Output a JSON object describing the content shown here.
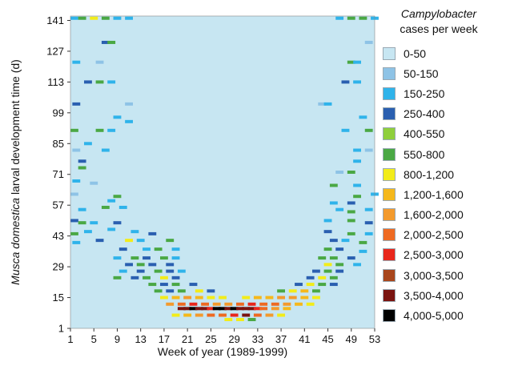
{
  "chart_data": {
    "type": "heatmap",
    "xlabel": "Week of year (1989-1999)",
    "ylabel": {
      "italic": "Musca domestica",
      "rest": " larval development time (d)"
    },
    "x_ticks": [
      1,
      5,
      9,
      13,
      17,
      21,
      25,
      29,
      33,
      37,
      41,
      45,
      49,
      53
    ],
    "y_ticks": [
      1,
      15,
      29,
      43,
      57,
      71,
      85,
      99,
      113,
      127,
      141
    ],
    "xlim": [
      1,
      53
    ],
    "ylim": [
      1,
      143
    ],
    "background_color": "#c7e6f2",
    "legend": {
      "title_italic": "Campylobacter",
      "title_rest": "cases per week",
      "position": "right",
      "bins": [
        {
          "label": "0-50",
          "color": "#c7e6f2",
          "value": 25
        },
        {
          "label": "50-150",
          "color": "#8ec3e6",
          "value": 100
        },
        {
          "label": "150-250",
          "color": "#2fb3ea",
          "value": 200
        },
        {
          "label": "250-400",
          "color": "#2a5fb0",
          "value": 325
        },
        {
          "label": "400-550",
          "color": "#8fcf3c",
          "value": 475
        },
        {
          "label": "550-800",
          "color": "#4aa844",
          "value": 675
        },
        {
          "label": "800-1,200",
          "color": "#f2ec1a",
          "value": 1000
        },
        {
          "label": "1,200-1,600",
          "color": "#f5b81c",
          "value": 1400
        },
        {
          "label": "1,600-2,000",
          "color": "#f39a2d",
          "value": 1800
        },
        {
          "label": "2,000-2,500",
          "color": "#ee6a22",
          "value": 2250
        },
        {
          "label": "2,500-3,000",
          "color": "#e8271c",
          "value": 2750
        },
        {
          "label": "3,000-3,500",
          "color": "#a8461c",
          "value": 3250
        },
        {
          "label": "3,500-4,000",
          "color": "#7a1410",
          "value": 3750
        },
        {
          "label": "4,000-5,000",
          "color": "#000000",
          "value": 4500
        }
      ]
    },
    "cells": [
      {
        "week": 1,
        "day": 142,
        "value": 200
      },
      {
        "week": 3,
        "day": 142,
        "value": 675
      },
      {
        "week": 5,
        "day": 142,
        "value": 1000
      },
      {
        "week": 7,
        "day": 142,
        "value": 675
      },
      {
        "week": 9,
        "day": 142,
        "value": 200
      },
      {
        "week": 11,
        "day": 142,
        "value": 200
      },
      {
        "week": 47,
        "day": 142,
        "value": 200
      },
      {
        "week": 49,
        "day": 142,
        "value": 675
      },
      {
        "week": 51,
        "day": 142,
        "value": 675
      },
      {
        "week": 53,
        "day": 142,
        "value": 200
      },
      {
        "week": 7,
        "day": 131,
        "value": 325
      },
      {
        "week": 8,
        "day": 131,
        "value": 675
      },
      {
        "week": 52,
        "day": 131,
        "value": 100
      },
      {
        "week": 2,
        "day": 122,
        "value": 200
      },
      {
        "week": 6,
        "day": 122,
        "value": 100
      },
      {
        "week": 49,
        "day": 122,
        "value": 675
      },
      {
        "week": 50,
        "day": 122,
        "value": 200
      },
      {
        "week": 4,
        "day": 113,
        "value": 325
      },
      {
        "week": 6,
        "day": 113,
        "value": 675
      },
      {
        "week": 8,
        "day": 113,
        "value": 200
      },
      {
        "week": 48,
        "day": 113,
        "value": 325
      },
      {
        "week": 50,
        "day": 113,
        "value": 200
      },
      {
        "week": 2,
        "day": 103,
        "value": 325
      },
      {
        "week": 11,
        "day": 103,
        "value": 100
      },
      {
        "week": 44,
        "day": 103,
        "value": 100
      },
      {
        "week": 45,
        "day": 103,
        "value": 200
      },
      {
        "week": 9,
        "day": 97,
        "value": 200
      },
      {
        "week": 11,
        "day": 95,
        "value": 200
      },
      {
        "week": 51,
        "day": 97,
        "value": 200
      },
      {
        "week": 1,
        "day": 91,
        "value": 675
      },
      {
        "week": 6,
        "day": 91,
        "value": 675
      },
      {
        "week": 8,
        "day": 91,
        "value": 200
      },
      {
        "week": 48,
        "day": 91,
        "value": 200
      },
      {
        "week": 52,
        "day": 91,
        "value": 675
      },
      {
        "week": 4,
        "day": 85,
        "value": 200
      },
      {
        "week": 2,
        "day": 82,
        "value": 100
      },
      {
        "week": 7,
        "day": 82,
        "value": 200
      },
      {
        "week": 50,
        "day": 82,
        "value": 200
      },
      {
        "week": 52,
        "day": 82,
        "value": 100
      },
      {
        "week": 3,
        "day": 77,
        "value": 325
      },
      {
        "week": 50,
        "day": 77,
        "value": 200
      },
      {
        "week": 3,
        "day": 74,
        "value": 675
      },
      {
        "week": 47,
        "day": 72,
        "value": 100
      },
      {
        "week": 49,
        "day": 72,
        "value": 675
      },
      {
        "week": 2,
        "day": 68,
        "value": 200
      },
      {
        "week": 5,
        "day": 67,
        "value": 100
      },
      {
        "week": 46,
        "day": 66,
        "value": 675
      },
      {
        "week": 50,
        "day": 66,
        "value": 200
      },
      {
        "week": 1,
        "day": 62,
        "value": 100
      },
      {
        "week": 9,
        "day": 61,
        "value": 675
      },
      {
        "week": 50,
        "day": 61,
        "value": 675
      },
      {
        "week": 53,
        "day": 62,
        "value": 200
      },
      {
        "week": 8,
        "day": 59,
        "value": 200
      },
      {
        "week": 46,
        "day": 58,
        "value": 200
      },
      {
        "week": 49,
        "day": 58,
        "value": 325
      },
      {
        "week": 3,
        "day": 55,
        "value": 200
      },
      {
        "week": 7,
        "day": 56,
        "value": 675
      },
      {
        "week": 10,
        "day": 56,
        "value": 200
      },
      {
        "week": 47,
        "day": 55,
        "value": 200
      },
      {
        "week": 49,
        "day": 54,
        "value": 675
      },
      {
        "week": 52,
        "day": 55,
        "value": 200
      },
      {
        "week": 1,
        "day": 50,
        "value": 325
      },
      {
        "week": 3,
        "day": 49,
        "value": 675
      },
      {
        "week": 5,
        "day": 49,
        "value": 200
      },
      {
        "week": 9,
        "day": 49,
        "value": 325
      },
      {
        "week": 45,
        "day": 50,
        "value": 200
      },
      {
        "week": 49,
        "day": 50,
        "value": 675
      },
      {
        "week": 52,
        "day": 49,
        "value": 325
      },
      {
        "week": 1,
        "day": 44,
        "value": 675
      },
      {
        "week": 4,
        "day": 45,
        "value": 200
      },
      {
        "week": 8,
        "day": 46,
        "value": 200
      },
      {
        "week": 12,
        "day": 45,
        "value": 200
      },
      {
        "week": 15,
        "day": 44,
        "value": 325
      },
      {
        "week": 45,
        "day": 45,
        "value": 325
      },
      {
        "week": 49,
        "day": 44,
        "value": 675
      },
      {
        "week": 52,
        "day": 44,
        "value": 200
      },
      {
        "week": 2,
        "day": 40,
        "value": 200
      },
      {
        "week": 6,
        "day": 41,
        "value": 325
      },
      {
        "week": 11,
        "day": 41,
        "value": 1000
      },
      {
        "week": 13,
        "day": 41,
        "value": 200
      },
      {
        "week": 18,
        "day": 41,
        "value": 675
      },
      {
        "week": 46,
        "day": 41,
        "value": 325
      },
      {
        "week": 48,
        "day": 41,
        "value": 200
      },
      {
        "week": 51,
        "day": 40,
        "value": 675
      },
      {
        "week": 10,
        "day": 37,
        "value": 325
      },
      {
        "week": 14,
        "day": 37,
        "value": 200
      },
      {
        "week": 16,
        "day": 37,
        "value": 675
      },
      {
        "week": 19,
        "day": 37,
        "value": 200
      },
      {
        "week": 45,
        "day": 37,
        "value": 675
      },
      {
        "week": 47,
        "day": 37,
        "value": 325
      },
      {
        "week": 51,
        "day": 36,
        "value": 200
      },
      {
        "week": 9,
        "day": 33,
        "value": 200
      },
      {
        "week": 12,
        "day": 33,
        "value": 675
      },
      {
        "week": 14,
        "day": 33,
        "value": 325
      },
      {
        "week": 17,
        "day": 33,
        "value": 675
      },
      {
        "week": 19,
        "day": 33,
        "value": 200
      },
      {
        "week": 44,
        "day": 33,
        "value": 675
      },
      {
        "week": 46,
        "day": 33,
        "value": 675
      },
      {
        "week": 49,
        "day": 33,
        "value": 325
      },
      {
        "week": 11,
        "day": 30,
        "value": 325
      },
      {
        "week": 13,
        "day": 30,
        "value": 675
      },
      {
        "week": 15,
        "day": 30,
        "value": 325
      },
      {
        "week": 18,
        "day": 30,
        "value": 325
      },
      {
        "week": 45,
        "day": 30,
        "value": 1000
      },
      {
        "week": 47,
        "day": 30,
        "value": 675
      },
      {
        "week": 50,
        "day": 30,
        "value": 200
      },
      {
        "week": 10,
        "day": 27,
        "value": 200
      },
      {
        "week": 13,
        "day": 27,
        "value": 325
      },
      {
        "week": 16,
        "day": 27,
        "value": 675
      },
      {
        "week": 18,
        "day": 27,
        "value": 325
      },
      {
        "week": 20,
        "day": 27,
        "value": 200
      },
      {
        "week": 43,
        "day": 27,
        "value": 325
      },
      {
        "week": 45,
        "day": 27,
        "value": 675
      },
      {
        "week": 47,
        "day": 27,
        "value": 325
      },
      {
        "week": 9,
        "day": 24,
        "value": 675
      },
      {
        "week": 12,
        "day": 24,
        "value": 325
      },
      {
        "week": 14,
        "day": 24,
        "value": 675
      },
      {
        "week": 17,
        "day": 24,
        "value": 1000
      },
      {
        "week": 19,
        "day": 24,
        "value": 325
      },
      {
        "week": 42,
        "day": 24,
        "value": 325
      },
      {
        "week": 44,
        "day": 24,
        "value": 1000
      },
      {
        "week": 46,
        "day": 24,
        "value": 675
      },
      {
        "week": 15,
        "day": 21,
        "value": 675
      },
      {
        "week": 17,
        "day": 21,
        "value": 325
      },
      {
        "week": 19,
        "day": 21,
        "value": 675
      },
      {
        "week": 22,
        "day": 21,
        "value": 325
      },
      {
        "week": 40,
        "day": 21,
        "value": 325
      },
      {
        "week": 42,
        "day": 21,
        "value": 1000
      },
      {
        "week": 44,
        "day": 21,
        "value": 675
      },
      {
        "week": 46,
        "day": 21,
        "value": 325
      },
      {
        "week": 16,
        "day": 18,
        "value": 675
      },
      {
        "week": 18,
        "day": 18,
        "value": 325
      },
      {
        "week": 20,
        "day": 18,
        "value": 675
      },
      {
        "week": 23,
        "day": 18,
        "value": 1000
      },
      {
        "week": 25,
        "day": 18,
        "value": 325
      },
      {
        "week": 37,
        "day": 18,
        "value": 675
      },
      {
        "week": 39,
        "day": 18,
        "value": 1000
      },
      {
        "week": 41,
        "day": 18,
        "value": 1400
      },
      {
        "week": 43,
        "day": 18,
        "value": 675
      },
      {
        "week": 17,
        "day": 15,
        "value": 1000
      },
      {
        "week": 19,
        "day": 15,
        "value": 1400
      },
      {
        "week": 21,
        "day": 15,
        "value": 1800
      },
      {
        "week": 23,
        "day": 15,
        "value": 1400
      },
      {
        "week": 25,
        "day": 15,
        "value": 1000
      },
      {
        "week": 27,
        "day": 15,
        "value": 1000
      },
      {
        "week": 31,
        "day": 15,
        "value": 1000
      },
      {
        "week": 33,
        "day": 15,
        "value": 1400
      },
      {
        "week": 35,
        "day": 15,
        "value": 1400
      },
      {
        "week": 37,
        "day": 15,
        "value": 1800
      },
      {
        "week": 39,
        "day": 15,
        "value": 1800
      },
      {
        "week": 41,
        "day": 15,
        "value": 1400
      },
      {
        "week": 43,
        "day": 15,
        "value": 1000
      },
      {
        "week": 18,
        "day": 12,
        "value": 1800
      },
      {
        "week": 20,
        "day": 12,
        "value": 2250
      },
      {
        "week": 22,
        "day": 12,
        "value": 2750
      },
      {
        "week": 24,
        "day": 12,
        "value": 2250
      },
      {
        "week": 26,
        "day": 12,
        "value": 1800
      },
      {
        "week": 28,
        "day": 12,
        "value": 1800
      },
      {
        "week": 30,
        "day": 12,
        "value": 2250
      },
      {
        "week": 32,
        "day": 12,
        "value": 2750
      },
      {
        "week": 34,
        "day": 12,
        "value": 2250
      },
      {
        "week": 36,
        "day": 12,
        "value": 2250
      },
      {
        "week": 38,
        "day": 12,
        "value": 1800
      },
      {
        "week": 40,
        "day": 12,
        "value": 1400
      },
      {
        "week": 42,
        "day": 12,
        "value": 1000
      },
      {
        "week": 20,
        "day": 10,
        "value": 3250
      },
      {
        "week": 21,
        "day": 10,
        "value": 3750
      },
      {
        "week": 22,
        "day": 10,
        "value": 4500
      },
      {
        "week": 23,
        "day": 10,
        "value": 3250
      },
      {
        "week": 24,
        "day": 10,
        "value": 3750
      },
      {
        "week": 25,
        "day": 10,
        "value": 2750
      },
      {
        "week": 26,
        "day": 10,
        "value": 4500
      },
      {
        "week": 27,
        "day": 10,
        "value": 4500
      },
      {
        "week": 28,
        "day": 10,
        "value": 3750
      },
      {
        "week": 29,
        "day": 10,
        "value": 4500
      },
      {
        "week": 30,
        "day": 10,
        "value": 3250
      },
      {
        "week": 31,
        "day": 10,
        "value": 3750
      },
      {
        "week": 32,
        "day": 10,
        "value": 3250
      },
      {
        "week": 33,
        "day": 10,
        "value": 2750
      },
      {
        "week": 34,
        "day": 10,
        "value": 2250
      },
      {
        "week": 36,
        "day": 10,
        "value": 1800
      },
      {
        "week": 38,
        "day": 10,
        "value": 1400
      },
      {
        "week": 19,
        "day": 7,
        "value": 1000
      },
      {
        "week": 21,
        "day": 7,
        "value": 1400
      },
      {
        "week": 23,
        "day": 7,
        "value": 1800
      },
      {
        "week": 25,
        "day": 7,
        "value": 2250
      },
      {
        "week": 27,
        "day": 7,
        "value": 2250
      },
      {
        "week": 29,
        "day": 7,
        "value": 2750
      },
      {
        "week": 31,
        "day": 7,
        "value": 3250
      },
      {
        "week": 33,
        "day": 7,
        "value": 2250
      },
      {
        "week": 35,
        "day": 7,
        "value": 1800
      },
      {
        "week": 37,
        "day": 7,
        "value": 1000
      },
      {
        "week": 28,
        "day": 5,
        "value": 1000
      },
      {
        "week": 30,
        "day": 5,
        "value": 1000
      },
      {
        "week": 32,
        "day": 5,
        "value": 675
      }
    ]
  }
}
